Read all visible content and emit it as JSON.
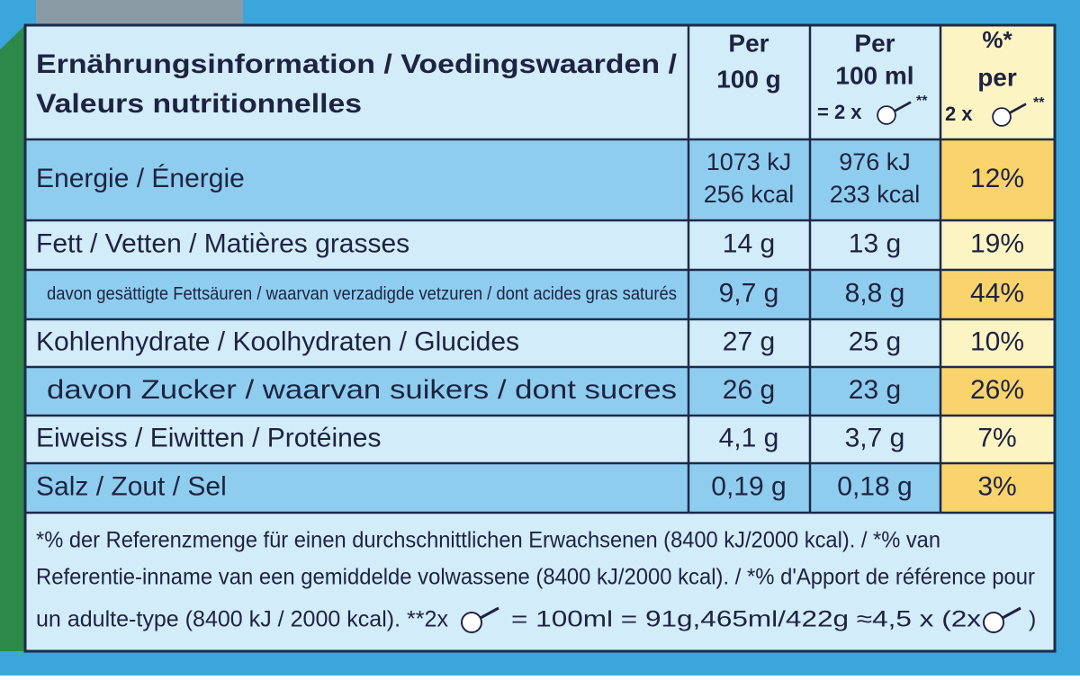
{
  "header": {
    "title": [
      "Ernährungsinformation / Voedingswaarden /",
      "Valeurs nutritionnelles"
    ],
    "per_100g": [
      "Per",
      "100 g"
    ],
    "per_100ml": [
      "Per",
      "100 ml",
      "= 2 x",
      "**"
    ],
    "percent": [
      "%*",
      "per",
      "2 x",
      "**"
    ]
  },
  "rows": [
    {
      "label": "Energie / Énergie",
      "per_100g": [
        "1073 kJ",
        "256 kcal"
      ],
      "per_100ml": [
        "976 kJ",
        "233 kcal"
      ],
      "percent": "12%"
    },
    {
      "label": "Fett / Vetten / Matières grasses",
      "per_100g": [
        "14 g"
      ],
      "per_100ml": [
        "13 g"
      ],
      "percent": "19%"
    },
    {
      "label": "davon gesättigte Fettsäuren / waarvan verzadigde vetzuren / dont acides gras saturés",
      "per_100g": [
        "9,7 g"
      ],
      "per_100ml": [
        "8,8 g"
      ],
      "percent": "44%"
    },
    {
      "label": "Kohlenhydrate / Koolhydraten / Glucides",
      "per_100g": [
        "27 g"
      ],
      "per_100ml": [
        "25 g"
      ],
      "percent": "10%"
    },
    {
      "label": "davon Zucker / waarvan suikers / dont sucres",
      "per_100g": [
        "26 g"
      ],
      "per_100ml": [
        "23 g"
      ],
      "percent": "26%"
    },
    {
      "label": "Eiweiss / Eiwitten / Protéines",
      "per_100g": [
        "4,1 g"
      ],
      "per_100ml": [
        "3,7 g"
      ],
      "percent": "7%"
    },
    {
      "label": "Salz / Zout / Sel",
      "per_100g": [
        "0,19 g"
      ],
      "per_100ml": [
        "0,18 g"
      ],
      "percent": "3%"
    }
  ],
  "footnote": [
    "*% der Referenzmenge für einen durchschnittlichen Erwachsenen (8400 kJ/2000 kcal). / *% van",
    "Referentie-inname van een gemiddelde volwassene (8400 kJ/2000 kcal). / *% d'Apport de référence pour",
    "un adulte-type (8400 kJ / 2000 kcal).  **2x",
    "= 100ml = 91g,465ml/422g ≈4,5 x (2x",
    ")"
  ]
}
